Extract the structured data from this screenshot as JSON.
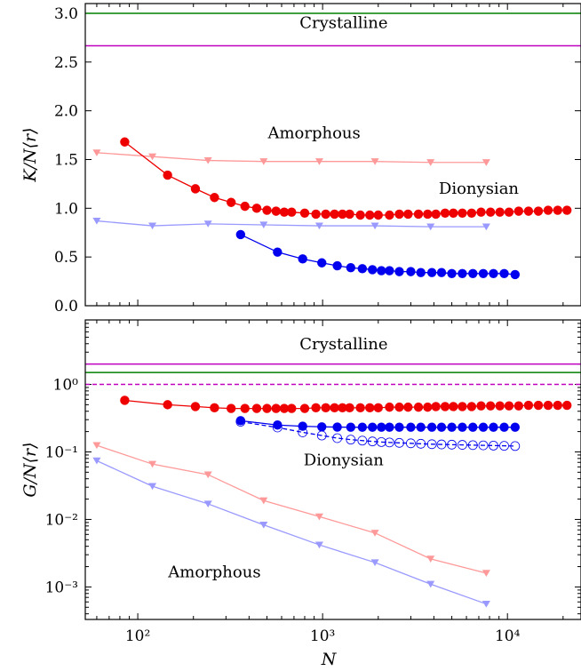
{
  "chart_data": [
    {
      "type": "line",
      "ylabel": "K/N⟨r⟩",
      "xlabel": "",
      "xscale": "log",
      "yscale": "linear",
      "xlim": [
        52,
        25000
      ],
      "ylim": [
        0.0,
        3.1
      ],
      "yticks": [
        {
          "value": 0.0,
          "label": "0.0"
        },
        {
          "value": 0.5,
          "label": "0.5"
        },
        {
          "value": 1.0,
          "label": "1.0"
        },
        {
          "value": 1.5,
          "label": "1.5"
        },
        {
          "value": 2.0,
          "label": "2.0"
        },
        {
          "value": 2.5,
          "label": "2.5"
        },
        {
          "value": 3.0,
          "label": "3.0"
        }
      ],
      "annotations": [
        {
          "text": "Crystalline",
          "x": 1300,
          "y": 2.85
        },
        {
          "text": "Amorphous",
          "x": 900,
          "y": 1.72
        },
        {
          "text": "Dionysian",
          "x": 7000,
          "y": 1.15
        }
      ],
      "series": [
        {
          "color": "#008000",
          "style": "line",
          "x": [
            52,
            25000
          ],
          "y": [
            3.0,
            3.0
          ]
        },
        {
          "color": "#bf00bf",
          "style": "line",
          "x": [
            52,
            25000
          ],
          "y": [
            2.667,
            2.667
          ]
        },
        {
          "color": "#ff9999",
          "style": "triangle-line",
          "x": [
            60,
            120,
            240,
            480,
            960,
            1920,
            3840,
            7680
          ],
          "y": [
            1.57,
            1.53,
            1.49,
            1.48,
            1.48,
            1.48,
            1.47,
            1.47
          ]
        },
        {
          "color": "#9999ff",
          "style": "triangle-line",
          "x": [
            60,
            120,
            240,
            480,
            960,
            1920,
            3840,
            7680
          ],
          "y": [
            0.87,
            0.82,
            0.84,
            0.83,
            0.82,
            0.82,
            0.81,
            0.81
          ]
        },
        {
          "color": "#ee0000",
          "style": "circle-line",
          "x": [
            85,
            145,
            205,
            260,
            320,
            380,
            440,
            500,
            560,
            620,
            680,
            800,
            920,
            1040,
            1160,
            1280,
            1400,
            1600,
            1800,
            2000,
            2300,
            2600,
            2900,
            3300,
            3700,
            4100,
            4600,
            5100,
            5700,
            6400,
            7200,
            8100,
            9100,
            10200,
            11500,
            13000,
            14700,
            16600,
            18700,
            21000
          ],
          "y": [
            1.68,
            1.34,
            1.2,
            1.11,
            1.06,
            1.02,
            1.0,
            0.98,
            0.97,
            0.96,
            0.96,
            0.95,
            0.94,
            0.94,
            0.94,
            0.94,
            0.94,
            0.93,
            0.93,
            0.93,
            0.93,
            0.94,
            0.94,
            0.94,
            0.94,
            0.94,
            0.95,
            0.95,
            0.95,
            0.95,
            0.96,
            0.96,
            0.96,
            0.96,
            0.97,
            0.97,
            0.97,
            0.98,
            0.98,
            0.98
          ]
        },
        {
          "color": "#0000ee",
          "style": "circle-line",
          "x": [
            360,
            570,
            780,
            990,
            1200,
            1420,
            1640,
            1860,
            2080,
            2300,
            2600,
            3000,
            3400,
            3900,
            4400,
            5000,
            5700,
            6500,
            7400,
            8400,
            9600,
            11000
          ],
          "y": [
            0.73,
            0.55,
            0.48,
            0.44,
            0.41,
            0.39,
            0.38,
            0.37,
            0.36,
            0.36,
            0.35,
            0.35,
            0.34,
            0.34,
            0.34,
            0.33,
            0.33,
            0.33,
            0.33,
            0.33,
            0.33,
            0.32
          ]
        }
      ]
    },
    {
      "type": "line",
      "ylabel": "G/N⟨r⟩",
      "xlabel": "N",
      "xscale": "log",
      "yscale": "log",
      "xlim": [
        52,
        25000
      ],
      "ylim": [
        0.00033,
        9
      ],
      "xticks": [
        {
          "value": 100,
          "label": "10²"
        },
        {
          "value": 1000,
          "label": "10³"
        },
        {
          "value": 10000,
          "label": "10⁴"
        }
      ],
      "yticks": [
        {
          "value": 1,
          "label": "10⁰"
        },
        {
          "value": 0.1,
          "label": "10⁻¹"
        },
        {
          "value": 0.01,
          "label": "10⁻²"
        },
        {
          "value": 0.001,
          "label": "10⁻³"
        }
      ],
      "annotations": [
        {
          "text": "Crystalline",
          "x": 1300,
          "y": 3.3
        },
        {
          "text": "Dionysian",
          "x": 1300,
          "y": 0.063
        },
        {
          "text": "Amorphous",
          "x": 260,
          "y": 0.0014
        }
      ],
      "series": [
        {
          "color": "#bf00bf",
          "style": "line",
          "x": [
            52,
            25000
          ],
          "y": [
            2.0,
            2.0
          ]
        },
        {
          "color": "#008000",
          "style": "line",
          "x": [
            52,
            25000
          ],
          "y": [
            1.5,
            1.5
          ]
        },
        {
          "color": "#bf00bf",
          "style": "dashed",
          "x": [
            52,
            25000
          ],
          "y": [
            1.0,
            1.0
          ]
        },
        {
          "color": "#ee0000",
          "style": "circle-line",
          "x": [
            85,
            145,
            205,
            260,
            320,
            380,
            440,
            500,
            560,
            620,
            680,
            800,
            920,
            1040,
            1160,
            1280,
            1400,
            1600,
            1800,
            2000,
            2300,
            2600,
            2900,
            3300,
            3700,
            4100,
            4600,
            5100,
            5700,
            6400,
            7200,
            8100,
            9100,
            10200,
            11500,
            13000,
            14700,
            16600,
            18700,
            21000
          ],
          "y": [
            0.58,
            0.5,
            0.47,
            0.45,
            0.44,
            0.44,
            0.44,
            0.44,
            0.44,
            0.44,
            0.44,
            0.44,
            0.45,
            0.45,
            0.45,
            0.45,
            0.45,
            0.45,
            0.45,
            0.45,
            0.46,
            0.46,
            0.46,
            0.46,
            0.46,
            0.47,
            0.47,
            0.47,
            0.47,
            0.47,
            0.48,
            0.48,
            0.48,
            0.48,
            0.48,
            0.49,
            0.49,
            0.49,
            0.49,
            0.49
          ]
        },
        {
          "color": "#0000ee",
          "style": "circle-line",
          "x": [
            360,
            570,
            780,
            990,
            1200,
            1420,
            1640,
            1860,
            2080,
            2300,
            2600,
            3000,
            3400,
            3900,
            4400,
            5000,
            5700,
            6500,
            7400,
            8400,
            9600,
            11000
          ],
          "y": [
            0.29,
            0.25,
            0.24,
            0.235,
            0.233,
            0.232,
            0.232,
            0.232,
            0.232,
            0.232,
            0.232,
            0.232,
            0.232,
            0.232,
            0.232,
            0.232,
            0.232,
            0.232,
            0.232,
            0.232,
            0.232,
            0.232
          ]
        },
        {
          "color": "#0000ee",
          "style": "open-circle-dashed",
          "x": [
            360,
            570,
            780,
            990,
            1200,
            1420,
            1640,
            1860,
            2080,
            2300,
            2600,
            3000,
            3400,
            3900,
            4400,
            5000,
            5700,
            6500,
            7400,
            8400,
            9600,
            11000
          ],
          "y": [
            0.28,
            0.23,
            0.195,
            0.175,
            0.16,
            0.152,
            0.147,
            0.143,
            0.14,
            0.138,
            0.136,
            0.134,
            0.132,
            0.13,
            0.129,
            0.128,
            0.127,
            0.126,
            0.125,
            0.124,
            0.123,
            0.122
          ]
        },
        {
          "color": "#ff9999",
          "style": "triangle-line",
          "x": [
            60,
            120,
            240,
            480,
            960,
            1920,
            3840,
            7680
          ],
          "y": [
            0.125,
            0.066,
            0.046,
            0.019,
            0.011,
            0.0063,
            0.0026,
            0.0016
          ]
        },
        {
          "color": "#9999ff",
          "style": "triangle-line",
          "x": [
            60,
            120,
            240,
            480,
            960,
            1920,
            3840,
            7680
          ],
          "y": [
            0.074,
            0.031,
            0.017,
            0.0083,
            0.0042,
            0.0023,
            0.0011,
            0.00056
          ]
        }
      ]
    }
  ]
}
